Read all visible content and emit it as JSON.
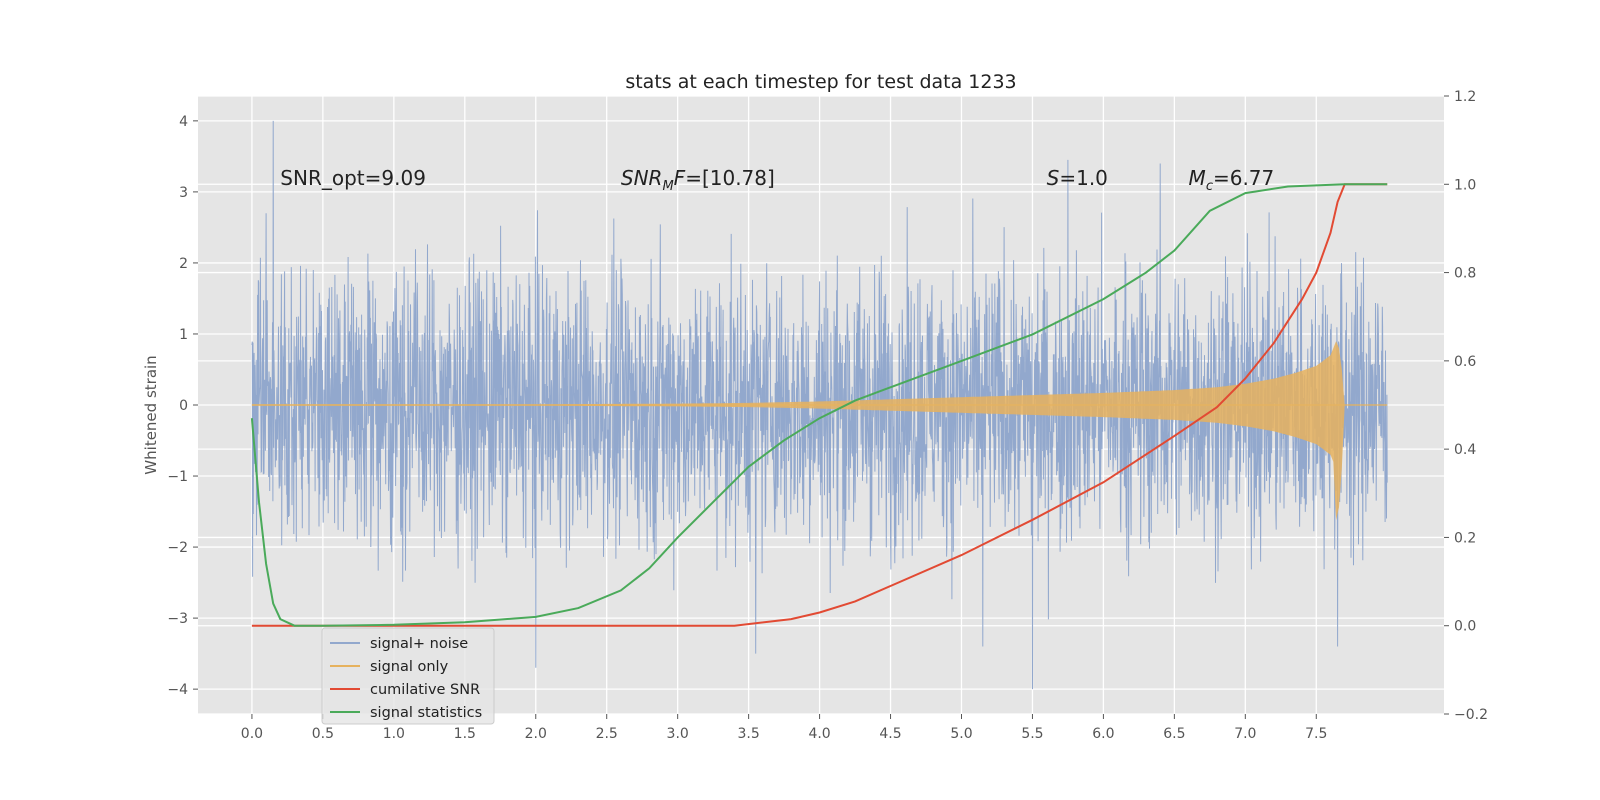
{
  "chart_data": {
    "type": "line",
    "title": "stats at each timestep for test data 1233",
    "ylabel": "Whitened strain",
    "ylabel_right": "",
    "xlabel": "",
    "xlim": [
      -0.38,
      8.4
    ],
    "ylim": [
      -4.35,
      4.35
    ],
    "ylim_right": [
      -0.2,
      1.2
    ],
    "x_ticks": [
      "0.0",
      "0.5",
      "1.0",
      "1.5",
      "2.0",
      "2.5",
      "3.0",
      "3.5",
      "4.0",
      "4.5",
      "5.0",
      "5.5",
      "6.0",
      "6.5",
      "7.0",
      "7.5"
    ],
    "y_ticks": [
      "4",
      "3",
      "2",
      "1",
      "0",
      "−1",
      "−2",
      "−3",
      "−4"
    ],
    "y_ticks_right": [
      "1.2",
      "1.0",
      "0.8",
      "0.6",
      "0.4",
      "0.2",
      "0.0",
      "−0.2"
    ],
    "grid": true,
    "legend_position": "lower-left",
    "annotations": [
      {
        "text": "SNR_opt=9.09",
        "x": 0.2,
        "y": 3.1
      },
      {
        "text": "SNR",
        "sub": "M",
        "rest": "F=[10.78]",
        "x": 2.6,
        "y": 3.1
      },
      {
        "text": "S",
        "rest": "=1.0",
        "x": 5.6,
        "y": 3.1
      },
      {
        "text": "M",
        "sub": "c",
        "rest": "=6.77",
        "x": 6.6,
        "y": 3.1
      }
    ],
    "series": [
      {
        "name": "signal+ noise",
        "axis": "left",
        "color": "#92a8cd",
        "x_range": [
          0.0,
          8.0
        ],
        "band_lower": -1.8,
        "band_upper": 1.8,
        "notable_peaks": [
          [
            0.15,
            4.0
          ],
          [
            0.1,
            2.7
          ],
          [
            2.0,
            -3.7
          ],
          [
            3.55,
            -3.5
          ],
          [
            5.5,
            -4.0
          ],
          [
            5.15,
            -3.4
          ],
          [
            7.65,
            3.5
          ],
          [
            7.65,
            -3.4
          ],
          [
            5.75,
            3.45
          ],
          [
            6.4,
            3.4
          ]
        ]
      },
      {
        "name": "signal only",
        "axis": "left",
        "color": "#e6b25e",
        "t": [
          0.0,
          2.0,
          3.0,
          3.5,
          4.0,
          4.5,
          5.0,
          5.5,
          6.0,
          6.5,
          6.8,
          7.0,
          7.2,
          7.35,
          7.5,
          7.6,
          7.65,
          7.68,
          7.7,
          8.0
        ],
        "amplitude": [
          0.01,
          0.01,
          0.02,
          0.03,
          0.05,
          0.08,
          0.11,
          0.14,
          0.17,
          0.21,
          0.25,
          0.3,
          0.37,
          0.45,
          0.55,
          0.7,
          0.95,
          0.5,
          0.0,
          0.0
        ]
      },
      {
        "name": "cumilative SNR",
        "axis": "right",
        "color": "#e24a33",
        "x": [
          0.0,
          1.0,
          2.0,
          3.0,
          3.4,
          3.8,
          4.0,
          4.25,
          4.5,
          5.0,
          5.5,
          6.0,
          6.5,
          6.8,
          7.0,
          7.2,
          7.4,
          7.5,
          7.6,
          7.65,
          7.7,
          8.0
        ],
        "y": [
          0.0,
          0.0,
          0.0,
          0.0,
          0.0,
          0.015,
          0.03,
          0.055,
          0.09,
          0.16,
          0.24,
          0.325,
          0.43,
          0.495,
          0.56,
          0.64,
          0.74,
          0.8,
          0.89,
          0.96,
          1.0,
          1.0
        ]
      },
      {
        "name": "signal statistics",
        "axis": "right",
        "color": "#4aaa5a",
        "x": [
          0.0,
          0.05,
          0.1,
          0.15,
          0.2,
          0.3,
          0.5,
          1.0,
          1.5,
          2.0,
          2.3,
          2.6,
          2.8,
          3.0,
          3.25,
          3.5,
          3.75,
          4.0,
          4.25,
          4.5,
          5.0,
          5.5,
          6.0,
          6.3,
          6.5,
          6.75,
          7.0,
          7.3,
          7.7,
          8.0
        ],
        "y": [
          0.47,
          0.28,
          0.14,
          0.05,
          0.015,
          0.0,
          0.0,
          0.002,
          0.008,
          0.02,
          0.04,
          0.08,
          0.13,
          0.2,
          0.28,
          0.36,
          0.42,
          0.47,
          0.51,
          0.54,
          0.6,
          0.66,
          0.74,
          0.8,
          0.85,
          0.94,
          0.98,
          0.995,
          1.0,
          1.0
        ]
      }
    ]
  }
}
